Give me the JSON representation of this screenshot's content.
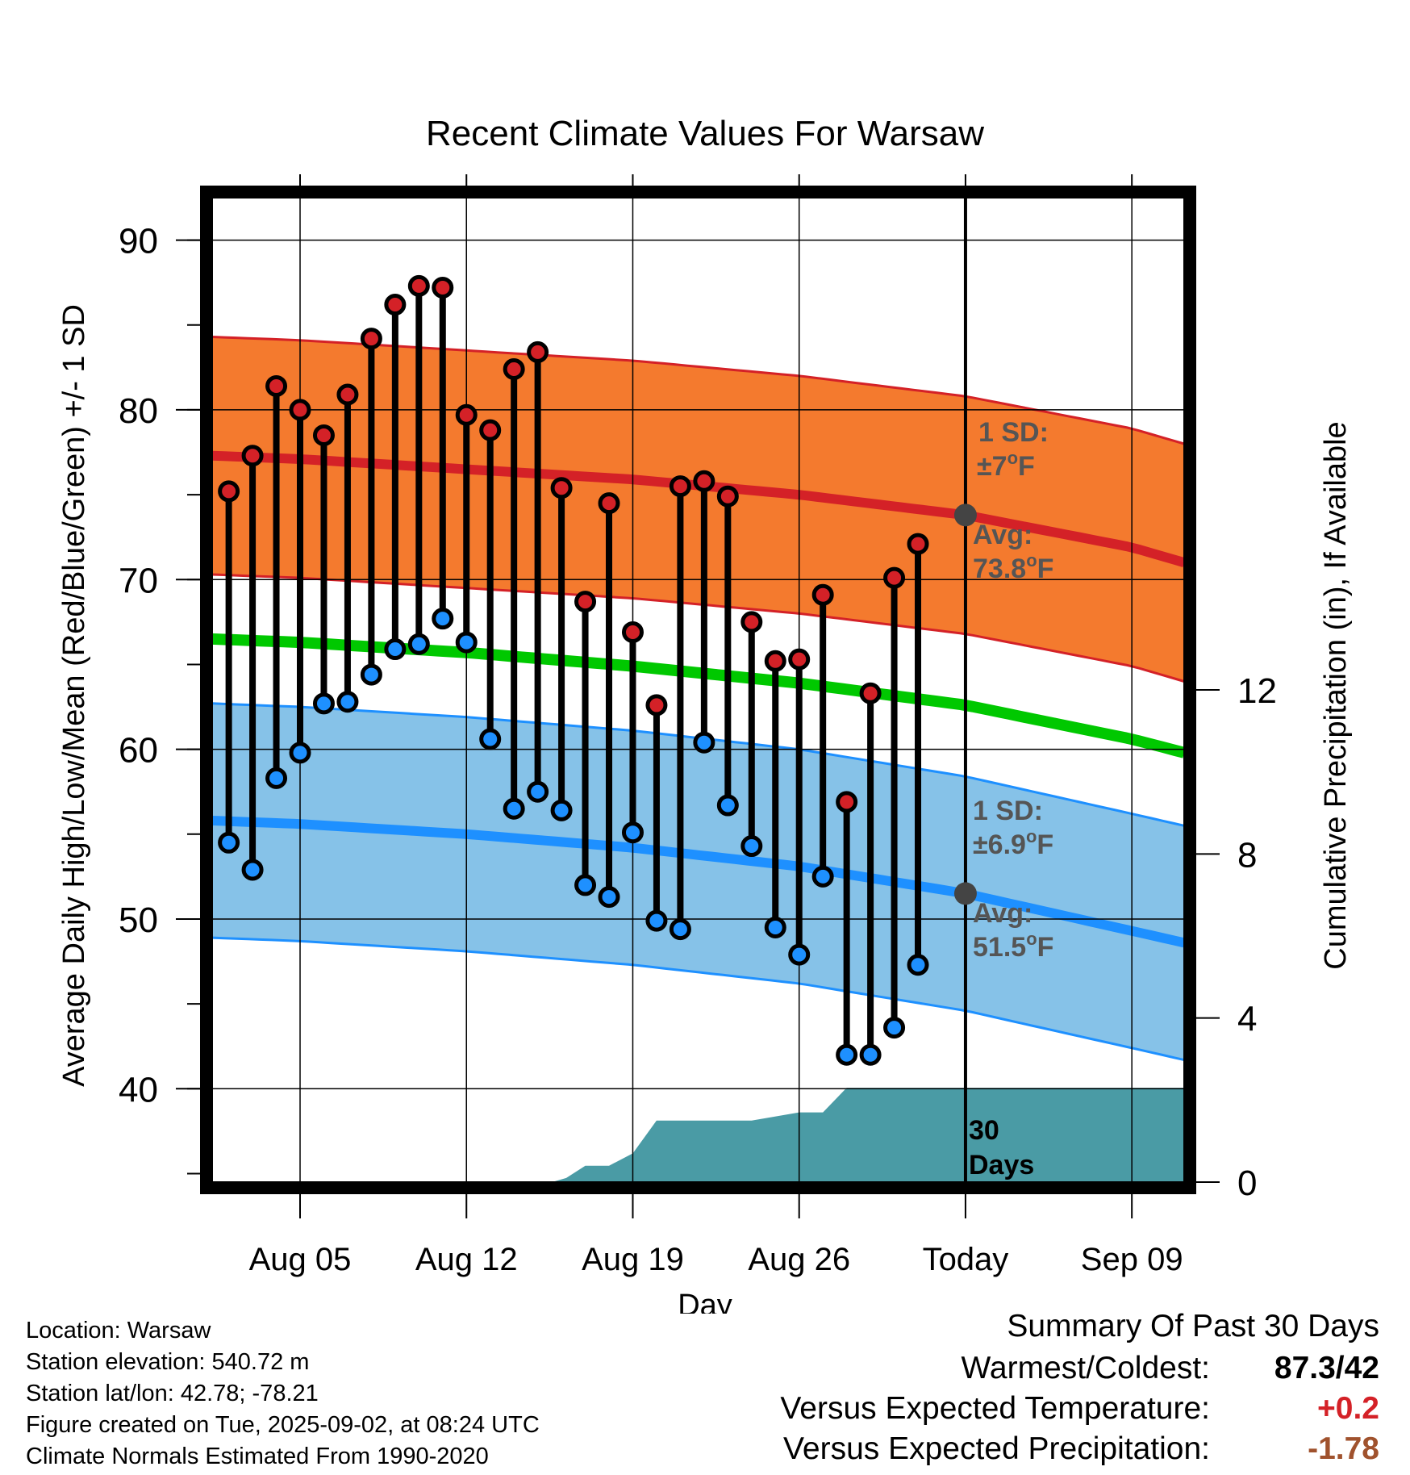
{
  "chart_data": {
    "type": "line",
    "title": "Recent Climate Values For Warsaw",
    "xlabel": "Day",
    "ylabel": "Average Daily High/Low/Mean (Red/Blue/Green) +/- 1 SD",
    "y2label": "Cumulative Precipitation (in), If Available",
    "ylim": [
      34.5,
      92.5
    ],
    "y2lim": [
      0,
      24
    ],
    "yticks": [
      40,
      50,
      60,
      70,
      80,
      90
    ],
    "y2ticks": [
      0,
      4,
      8,
      12
    ],
    "xlim": [
      1.3,
      42.2
    ],
    "xticks": [
      {
        "day": 5,
        "label": "Aug 05"
      },
      {
        "day": 12,
        "label": "Aug 12"
      },
      {
        "day": 19,
        "label": "Aug 19"
      },
      {
        "day": 26,
        "label": "Aug 26"
      },
      {
        "day": 33,
        "label": "Today"
      },
      {
        "day": 40,
        "label": "Sep 09"
      }
    ],
    "today_day": 33,
    "daily_observations": {
      "days": [
        2,
        3,
        4,
        5,
        6,
        7,
        8,
        9,
        10,
        11,
        12,
        13,
        14,
        15,
        16,
        17,
        18,
        19,
        20,
        21,
        22,
        23,
        24,
        25,
        26,
        27,
        28,
        29,
        30,
        31,
        32
      ],
      "high": [
        75.2,
        77.3,
        81.4,
        80.0,
        78.5,
        80.9,
        84.2,
        86.2,
        87.3,
        87.2,
        79.7,
        78.8,
        82.4,
        83.4,
        75.4,
        68.7,
        74.5,
        66.9,
        62.6,
        75.5,
        75.8,
        74.9,
        67.5,
        65.2,
        65.3,
        69.1,
        56.9,
        63.3,
        70.1,
        72.1,
        null
      ],
      "low": [
        54.5,
        52.9,
        58.3,
        59.8,
        62.7,
        62.8,
        64.4,
        65.9,
        66.2,
        67.7,
        66.3,
        60.6,
        56.5,
        57.5,
        56.4,
        52.0,
        51.3,
        55.1,
        49.9,
        49.4,
        60.4,
        56.7,
        54.3,
        49.5,
        47.9,
        52.5,
        42.0,
        42.0,
        43.6,
        47.3,
        null
      ]
    },
    "normals": {
      "days": [
        1.3,
        5,
        12,
        19,
        26,
        33,
        40,
        42.2
      ],
      "avg_high": [
        77.3,
        77.1,
        76.5,
        75.9,
        75.0,
        73.8,
        71.9,
        71.0
      ],
      "avg_high_sd": 7,
      "avg_low": [
        55.8,
        55.6,
        55.0,
        54.2,
        53.1,
        51.5,
        49.3,
        48.6
      ],
      "avg_low_sd": 6.9,
      "avg_mean": [
        66.5,
        66.3,
        65.7,
        64.9,
        63.9,
        62.6,
        60.6,
        59.8
      ]
    },
    "precipitation_cumulative": {
      "days": [
        1.3,
        15.6,
        16.2,
        17.0,
        18.0,
        19.0,
        20.0,
        24.0,
        26.0,
        27.0,
        28.0,
        42.2
      ],
      "values": [
        0,
        0,
        0.1,
        0.4,
        0.4,
        0.7,
        1.5,
        1.5,
        1.7,
        1.7,
        2.3,
        2.3
      ]
    },
    "annotations": {
      "high_sd_label": "1 SD:",
      "high_sd_value": "±7",
      "high_avg_label": "Avg:",
      "high_avg_value": "73.8",
      "low_sd_label": "1 SD:",
      "low_sd_value": "±6.9",
      "low_avg_label": "Avg:",
      "low_avg_value": "51.5",
      "unit": "F",
      "degree": "o",
      "days_label_1": "30",
      "days_label_2": "Days"
    },
    "colors": {
      "high_band": "#f47a2e",
      "high_line": "#d42127",
      "low_band": "#86c2e8",
      "low_line": "#1e90ff",
      "mean_line": "#00c800",
      "precip": "#4a9ba5",
      "high_dot": "#d42127",
      "low_dot": "#1e90ff",
      "avg_marker": "#444444"
    },
    "grid": true
  },
  "footer": {
    "location": "Location: Warsaw",
    "elevation": "Station elevation: 540.72 m",
    "latlon": "Station lat/lon: 42.78; -78.21",
    "created": "Figure created on Tue, 2025-09-02, at 08:24 UTC",
    "normals": "Climate Normals Estimated From 1990-2020"
  },
  "summary": {
    "title": "Summary Of Past 30 Days",
    "warmest_label": "Warmest/Coldest:",
    "warmest_value": "87.3/42",
    "temp_label": "Versus Expected Temperature:",
    "temp_value": "+0.2",
    "temp_color": "#d42127",
    "precip_label": "Versus Expected Precipitation:",
    "precip_value": "-1.78",
    "precip_color": "#a0522d"
  }
}
